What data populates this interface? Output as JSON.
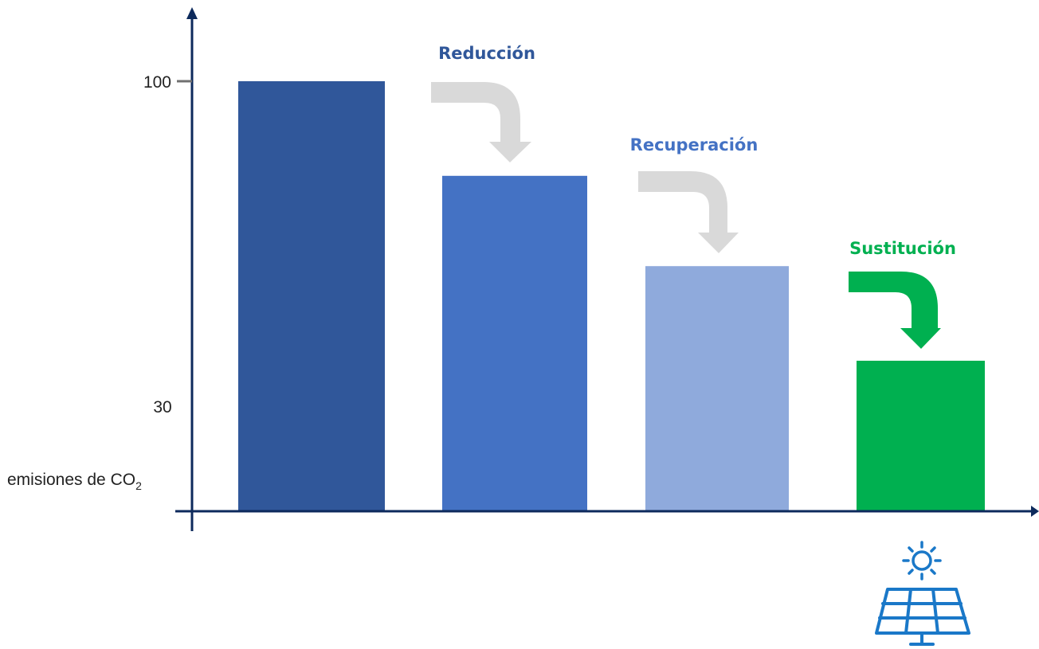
{
  "chart_data": {
    "type": "bar",
    "categories": [
      "",
      "Reducción",
      "Recuperación",
      "Sustitución"
    ],
    "values": [
      100,
      78,
      57,
      35
    ],
    "ylabel": {
      "text": "emisiones de CO",
      "subscript": "2"
    },
    "yticks": [
      100,
      30
    ],
    "ylim": [
      0,
      100
    ],
    "grid": false,
    "bar_colors": [
      "#30579a",
      "#4472c4",
      "#8faadc",
      "#00b050"
    ],
    "steps": [
      {
        "label": "Reducción",
        "color": "#30579a",
        "arrow_color": "#d9d9d9"
      },
      {
        "label": "Recuperación",
        "color": "#4472c4",
        "arrow_color": "#d9d9d9"
      },
      {
        "label": "Sustitución",
        "color": "#00b050",
        "arrow_color": "#00b050"
      }
    ],
    "axis_color": "#0d2a5c",
    "icon": {
      "name": "solar-panel-icon",
      "color": "#1a78c8"
    }
  }
}
